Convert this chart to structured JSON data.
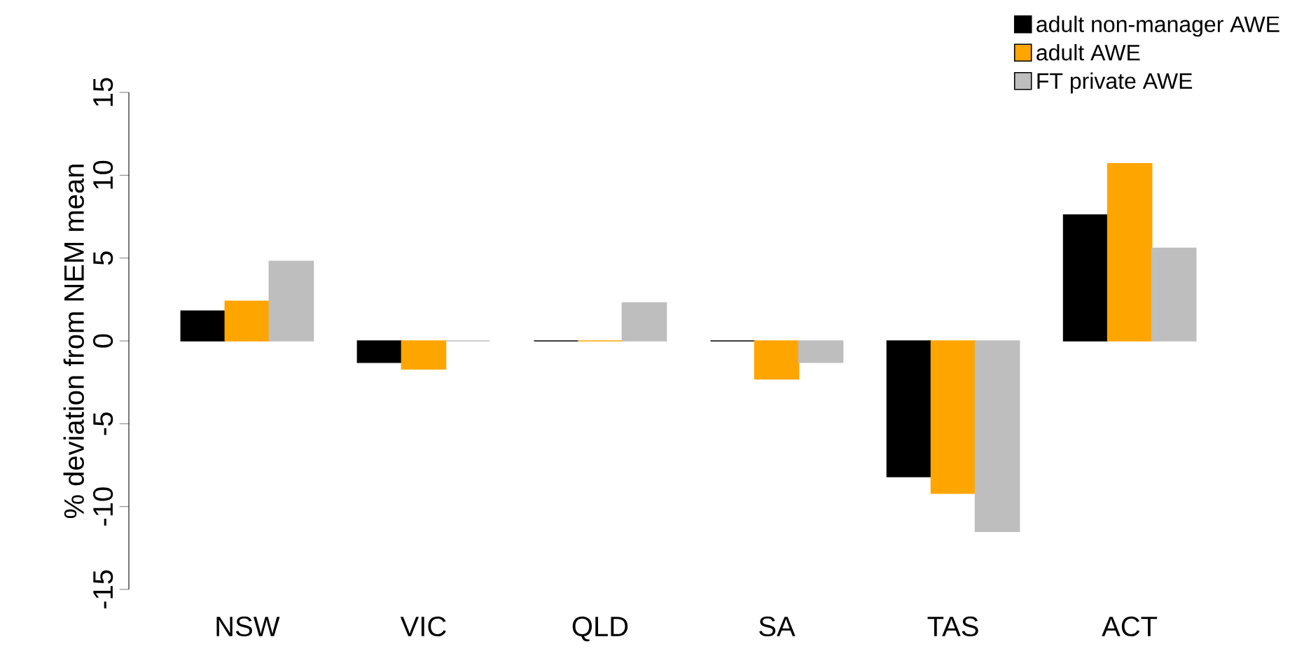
{
  "chart_data": {
    "type": "bar",
    "ylabel": "% deviation from NEM mean",
    "categories": [
      "NSW",
      "VIC",
      "QLD",
      "SA",
      "TAS",
      "ACT"
    ],
    "series": [
      {
        "name": "adult non-manager AWE",
        "color": "#000000",
        "values": [
          1.8,
          -1.3,
          0,
          0,
          -8.2,
          7.6
        ]
      },
      {
        "name": "adult AWE",
        "color": "#ffa500",
        "values": [
          2.4,
          -1.7,
          0,
          -2.3,
          -9.2,
          10.7
        ]
      },
      {
        "name": "FT private AWE",
        "color": "#bebebe",
        "values": [
          4.8,
          0,
          2.3,
          -1.3,
          -11.5,
          5.6
        ]
      }
    ],
    "ylim": [
      -15,
      15
    ],
    "yticks": [
      -15,
      -10,
      -5,
      0,
      5,
      10,
      15
    ],
    "grid": false,
    "legend": "top right"
  }
}
